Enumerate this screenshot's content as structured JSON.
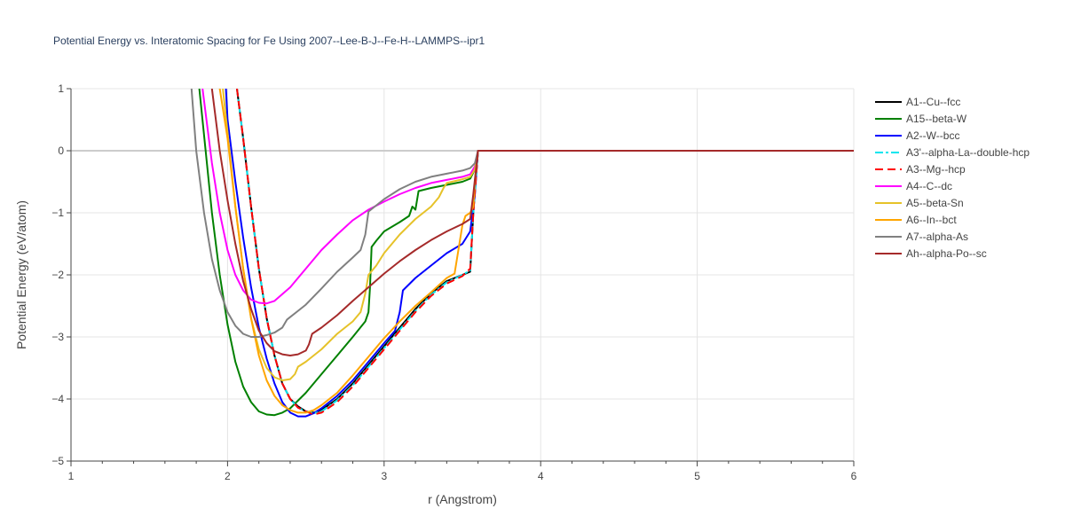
{
  "chart_data": {
    "type": "line",
    "title": "Potential Energy vs. Interatomic Spacing for Fe Using 2007--Lee-B-J--Fe-H--LAMMPS--ipr1",
    "xlabel": "r (Angstrom)",
    "ylabel": "Potential Energy (eV/atom)",
    "xlim": [
      1,
      6
    ],
    "ylim": [
      -5,
      1
    ],
    "xticks": [
      1,
      2,
      3,
      4,
      5,
      6
    ],
    "yticks": [
      1,
      0,
      -1,
      -2,
      -3,
      -4,
      -5
    ],
    "ytick_labels": [
      "1",
      "0",
      "−1",
      "−2",
      "−3",
      "−4",
      "−5"
    ],
    "grid": true,
    "legend_position": "right",
    "series": [
      {
        "name": "A1--Cu--fcc",
        "color": "#000000",
        "dash": "solid",
        "x": [
          2.06,
          2.1,
          2.15,
          2.2,
          2.25,
          2.3,
          2.35,
          2.4,
          2.45,
          2.5,
          2.55,
          2.6,
          2.7,
          2.8,
          2.9,
          3.0,
          3.1,
          3.2,
          3.3,
          3.4,
          3.5,
          3.55,
          3.57,
          3.6,
          6.0
        ],
        "y": [
          1,
          0.2,
          -0.9,
          -1.9,
          -2.7,
          -3.3,
          -3.75,
          -4.0,
          -4.12,
          -4.2,
          -4.22,
          -4.18,
          -4.0,
          -3.75,
          -3.45,
          -3.15,
          -2.85,
          -2.55,
          -2.3,
          -2.1,
          -2.0,
          -1.95,
          -1.0,
          0,
          0
        ]
      },
      {
        "name": "A15--beta-W",
        "color": "#008000",
        "dash": "solid",
        "x": [
          1.82,
          1.86,
          1.9,
          1.95,
          2.0,
          2.05,
          2.1,
          2.15,
          2.2,
          2.25,
          2.3,
          2.35,
          2.4,
          2.5,
          2.6,
          2.7,
          2.8,
          2.88,
          2.9,
          2.91,
          2.92,
          2.95,
          3.0,
          3.1,
          3.16,
          3.18,
          3.2,
          3.22,
          3.3,
          3.4,
          3.5,
          3.55,
          3.58,
          3.6,
          6.0
        ],
        "y": [
          1,
          0,
          -1,
          -2,
          -2.8,
          -3.4,
          -3.8,
          -4.05,
          -4.2,
          -4.25,
          -4.26,
          -4.22,
          -4.15,
          -3.9,
          -3.6,
          -3.3,
          -3.0,
          -2.75,
          -2.6,
          -2.2,
          -1.55,
          -1.45,
          -1.3,
          -1.15,
          -1.05,
          -0.9,
          -0.95,
          -0.65,
          -0.6,
          -0.55,
          -0.5,
          -0.45,
          -0.3,
          0,
          0
        ]
      },
      {
        "name": "A2--W--bcc",
        "color": "#0000ff",
        "dash": "solid",
        "x": [
          1.99,
          2.0,
          2.05,
          2.1,
          2.15,
          2.2,
          2.25,
          2.3,
          2.35,
          2.4,
          2.45,
          2.5,
          2.55,
          2.6,
          2.7,
          2.8,
          2.9,
          3.0,
          3.07,
          3.1,
          3.12,
          3.2,
          3.3,
          3.4,
          3.5,
          3.55,
          3.58,
          3.6,
          6.0
        ],
        "y": [
          1,
          0.5,
          -0.5,
          -1.4,
          -2.2,
          -2.85,
          -3.35,
          -3.75,
          -4.05,
          -4.22,
          -4.28,
          -4.28,
          -4.23,
          -4.15,
          -3.95,
          -3.7,
          -3.4,
          -3.1,
          -2.9,
          -2.6,
          -2.25,
          -2.05,
          -1.85,
          -1.65,
          -1.5,
          -1.3,
          -0.7,
          0,
          0
        ]
      },
      {
        "name": "A3'--alpha-La--double-hcp",
        "color": "#00e5ee",
        "dash": "dashdot",
        "x": [
          2.06,
          2.1,
          2.15,
          2.2,
          2.25,
          2.3,
          2.35,
          2.4,
          2.45,
          2.5,
          2.55,
          2.6,
          2.7,
          2.8,
          2.9,
          3.0,
          3.1,
          3.2,
          3.3,
          3.4,
          3.5,
          3.55,
          3.57,
          3.6,
          6.0
        ],
        "y": [
          1,
          0.2,
          -0.9,
          -1.9,
          -2.7,
          -3.3,
          -3.75,
          -4.0,
          -4.14,
          -4.2,
          -4.23,
          -4.2,
          -4.02,
          -3.78,
          -3.48,
          -3.18,
          -2.88,
          -2.58,
          -2.32,
          -2.12,
          -2.0,
          -1.93,
          -1.0,
          0,
          0
        ]
      },
      {
        "name": "A3--Mg--hcp",
        "color": "#ff0000",
        "dash": "dash",
        "x": [
          2.06,
          2.1,
          2.15,
          2.2,
          2.25,
          2.3,
          2.35,
          2.4,
          2.45,
          2.5,
          2.55,
          2.6,
          2.7,
          2.8,
          2.9,
          3.0,
          3.1,
          3.2,
          3.3,
          3.4,
          3.5,
          3.55,
          3.57,
          3.6,
          6.0
        ],
        "y": [
          1,
          0.2,
          -0.9,
          -1.9,
          -2.7,
          -3.3,
          -3.75,
          -4.0,
          -4.14,
          -4.2,
          -4.25,
          -4.22,
          -4.05,
          -3.8,
          -3.5,
          -3.2,
          -2.9,
          -2.6,
          -2.34,
          -2.14,
          -2.02,
          -1.9,
          -1.0,
          0,
          0
        ]
      },
      {
        "name": "A4--C--dc",
        "color": "#ff00ff",
        "dash": "solid",
        "x": [
          1.84,
          1.87,
          1.9,
          1.95,
          2.0,
          2.05,
          2.1,
          2.15,
          2.2,
          2.25,
          2.3,
          2.4,
          2.5,
          2.6,
          2.7,
          2.8,
          2.9,
          3.0,
          3.1,
          3.2,
          3.3,
          3.4,
          3.5,
          3.55,
          3.58,
          3.6,
          6.0
        ],
        "y": [
          1,
          0.4,
          -0.2,
          -1.0,
          -1.6,
          -2.0,
          -2.25,
          -2.4,
          -2.45,
          -2.46,
          -2.42,
          -2.2,
          -1.9,
          -1.6,
          -1.35,
          -1.12,
          -0.95,
          -0.82,
          -0.7,
          -0.6,
          -0.52,
          -0.47,
          -0.42,
          -0.38,
          -0.25,
          0,
          0
        ]
      },
      {
        "name": "A5--beta-Sn",
        "color": "#e6c229",
        "dash": "solid",
        "x": [
          1.97,
          2.0,
          2.05,
          2.1,
          2.15,
          2.2,
          2.25,
          2.3,
          2.35,
          2.4,
          2.43,
          2.45,
          2.5,
          2.6,
          2.7,
          2.8,
          2.85,
          2.88,
          2.9,
          2.95,
          3.0,
          3.1,
          3.2,
          3.3,
          3.35,
          3.38,
          3.4,
          3.5,
          3.55,
          3.58,
          3.6,
          6.0
        ],
        "y": [
          1,
          0.3,
          -0.9,
          -1.9,
          -2.7,
          -3.2,
          -3.5,
          -3.65,
          -3.7,
          -3.68,
          -3.6,
          -3.48,
          -3.4,
          -3.2,
          -2.95,
          -2.75,
          -2.6,
          -2.3,
          -2.0,
          -1.85,
          -1.65,
          -1.35,
          -1.1,
          -0.9,
          -0.75,
          -0.6,
          -0.52,
          -0.46,
          -0.42,
          -0.3,
          0,
          0
        ]
      },
      {
        "name": "A6--In--bct",
        "color": "#ffa500",
        "dash": "solid",
        "x": [
          1.95,
          2.0,
          2.05,
          2.1,
          2.15,
          2.2,
          2.25,
          2.3,
          2.35,
          2.4,
          2.45,
          2.5,
          2.55,
          2.6,
          2.7,
          2.8,
          2.9,
          3.0,
          3.1,
          3.2,
          3.3,
          3.4,
          3.45,
          3.5,
          3.52,
          3.55,
          3.57,
          3.58,
          3.6,
          6.0
        ],
        "y": [
          1,
          0.2,
          -0.9,
          -1.9,
          -2.7,
          -3.3,
          -3.7,
          -3.95,
          -4.1,
          -4.18,
          -4.22,
          -4.22,
          -4.18,
          -4.1,
          -3.9,
          -3.62,
          -3.32,
          -3.02,
          -2.75,
          -2.5,
          -2.28,
          -2.05,
          -1.98,
          -1.2,
          -1.05,
          -1.0,
          -0.9,
          -0.5,
          0,
          0
        ]
      },
      {
        "name": "A7--alpha-As",
        "color": "#808080",
        "dash": "solid",
        "x": [
          1.77,
          1.8,
          1.85,
          1.9,
          1.95,
          2.0,
          2.05,
          2.1,
          2.15,
          2.2,
          2.25,
          2.3,
          2.35,
          2.38,
          2.4,
          2.45,
          2.5,
          2.6,
          2.7,
          2.8,
          2.85,
          2.88,
          2.9,
          2.95,
          3.0,
          3.1,
          3.2,
          3.3,
          3.4,
          3.5,
          3.55,
          3.58,
          3.6,
          6.0
        ],
        "y": [
          1,
          0,
          -1.0,
          -1.75,
          -2.25,
          -2.6,
          -2.82,
          -2.95,
          -3.0,
          -3.0,
          -2.97,
          -2.93,
          -2.85,
          -2.72,
          -2.68,
          -2.58,
          -2.48,
          -2.22,
          -1.95,
          -1.72,
          -1.6,
          -1.35,
          -0.98,
          -0.88,
          -0.78,
          -0.62,
          -0.5,
          -0.42,
          -0.37,
          -0.32,
          -0.28,
          -0.2,
          0,
          0
        ]
      },
      {
        "name": "Ah--alpha-Po--sc",
        "color": "#a52a2a",
        "dash": "solid",
        "x": [
          1.9,
          1.95,
          2.0,
          2.05,
          2.1,
          2.15,
          2.2,
          2.25,
          2.3,
          2.35,
          2.4,
          2.45,
          2.5,
          2.52,
          2.54,
          2.6,
          2.7,
          2.8,
          2.9,
          3.0,
          3.1,
          3.2,
          3.3,
          3.4,
          3.5,
          3.55,
          3.57,
          3.6,
          6.0
        ],
        "y": [
          1,
          0,
          -0.8,
          -1.5,
          -2.1,
          -2.55,
          -2.9,
          -3.1,
          -3.23,
          -3.28,
          -3.3,
          -3.28,
          -3.22,
          -3.12,
          -2.95,
          -2.85,
          -2.65,
          -2.42,
          -2.2,
          -1.98,
          -1.78,
          -1.6,
          -1.44,
          -1.3,
          -1.18,
          -1.1,
          -0.7,
          0,
          0
        ]
      }
    ]
  }
}
